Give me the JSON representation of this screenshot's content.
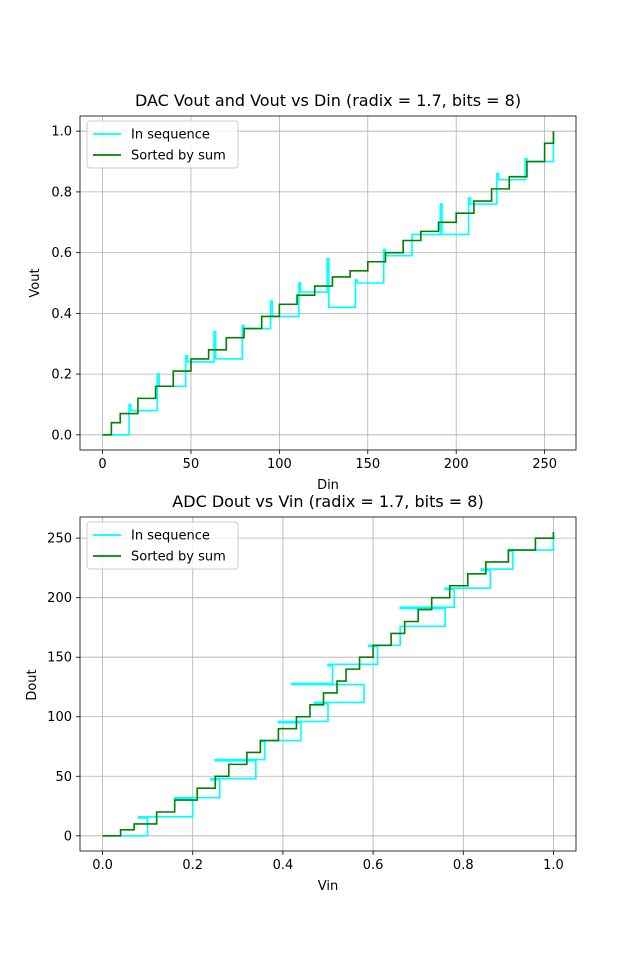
{
  "chart_data": [
    {
      "type": "line",
      "title": "DAC Vout and Vout vs Din (radix = 1.7, bits = 8)",
      "xlabel": "Din",
      "ylabel": "Vout",
      "xlim": [
        -12.75,
        267.75
      ],
      "ylim": [
        -0.05,
        1.05
      ],
      "xticks": [
        0,
        50,
        100,
        150,
        200,
        250
      ],
      "xtick_labels": [
        "0",
        "50",
        "100",
        "150",
        "200",
        "250"
      ],
      "yticks": [
        0,
        0.2,
        0.4,
        0.6,
        0.8,
        1.0
      ],
      "ytick_labels": [
        "0.0",
        "0.2",
        "0.4",
        "0.6",
        "0.8",
        "1.0"
      ],
      "grid": true,
      "legend_position": "upper-left",
      "series": [
        {
          "name": "In sequence",
          "color": "#00ffff",
          "x": [
            0,
            15,
            16,
            31,
            32,
            47,
            48,
            63,
            64,
            79,
            80,
            95,
            96,
            111,
            112,
            127,
            128,
            143,
            144,
            159,
            160,
            175,
            176,
            191,
            192,
            207,
            208,
            223,
            224,
            239,
            240,
            255
          ],
          "y": [
            0,
            0.1,
            0.08,
            0.2,
            0.16,
            0.26,
            0.24,
            0.34,
            0.25,
            0.36,
            0.35,
            0.44,
            0.39,
            0.5,
            0.47,
            0.58,
            0.42,
            0.51,
            0.5,
            0.61,
            0.59,
            0.66,
            0.66,
            0.76,
            0.66,
            0.78,
            0.76,
            0.86,
            0.84,
            0.91,
            0.9,
            1.0
          ]
        },
        {
          "name": "Sorted by sum",
          "color": "#008000",
          "x": [
            0,
            5,
            10,
            20,
            30,
            40,
            50,
            60,
            70,
            80,
            90,
            100,
            110,
            120,
            130,
            140,
            150,
            160,
            170,
            180,
            190,
            200,
            210,
            220,
            230,
            240,
            250,
            255
          ],
          "y": [
            0,
            0.04,
            0.07,
            0.12,
            0.16,
            0.21,
            0.25,
            0.28,
            0.32,
            0.35,
            0.39,
            0.43,
            0.46,
            0.49,
            0.52,
            0.54,
            0.57,
            0.6,
            0.64,
            0.67,
            0.7,
            0.73,
            0.77,
            0.81,
            0.85,
            0.9,
            0.96,
            1.0
          ]
        }
      ]
    },
    {
      "type": "line",
      "title": "ADC Dout vs Vin (radix = 1.7, bits = 8)",
      "xlabel": "Vin",
      "ylabel": "Dout",
      "xlim": [
        -0.05,
        1.05
      ],
      "ylim": [
        -12.75,
        267.75
      ],
      "xticks": [
        0,
        0.2,
        0.4,
        0.6,
        0.8,
        1.0
      ],
      "xtick_labels": [
        "0.0",
        "0.2",
        "0.4",
        "0.6",
        "0.8",
        "1.0"
      ],
      "yticks": [
        0,
        50,
        100,
        150,
        200,
        250
      ],
      "ytick_labels": [
        "0",
        "50",
        "100",
        "150",
        "200",
        "250"
      ],
      "grid": true,
      "legend_position": "upper-left",
      "series": [
        {
          "name": "In sequence",
          "color": "#00ffff",
          "x": [
            0,
            0.1,
            0.08,
            0.2,
            0.16,
            0.26,
            0.24,
            0.34,
            0.25,
            0.36,
            0.35,
            0.44,
            0.39,
            0.5,
            0.47,
            0.58,
            0.42,
            0.51,
            0.5,
            0.61,
            0.59,
            0.66,
            0.66,
            0.76,
            0.66,
            0.78,
            0.76,
            0.86,
            0.84,
            0.91,
            0.9,
            1.0
          ],
          "y": [
            0,
            15,
            16,
            31,
            32,
            47,
            48,
            63,
            64,
            79,
            80,
            95,
            96,
            111,
            112,
            127,
            128,
            143,
            144,
            159,
            160,
            175,
            176,
            191,
            192,
            207,
            208,
            223,
            224,
            239,
            240,
            255
          ]
        },
        {
          "name": "Sorted by sum",
          "color": "#008000",
          "x": [
            0,
            0.04,
            0.07,
            0.12,
            0.16,
            0.21,
            0.25,
            0.28,
            0.32,
            0.35,
            0.39,
            0.43,
            0.46,
            0.49,
            0.52,
            0.54,
            0.57,
            0.6,
            0.64,
            0.67,
            0.7,
            0.73,
            0.77,
            0.81,
            0.85,
            0.9,
            0.96,
            1.0
          ],
          "y": [
            0,
            5,
            10,
            20,
            30,
            40,
            50,
            60,
            70,
            80,
            90,
            100,
            110,
            120,
            130,
            140,
            150,
            160,
            170,
            180,
            190,
            200,
            210,
            220,
            230,
            240,
            250,
            255
          ]
        }
      ]
    }
  ]
}
